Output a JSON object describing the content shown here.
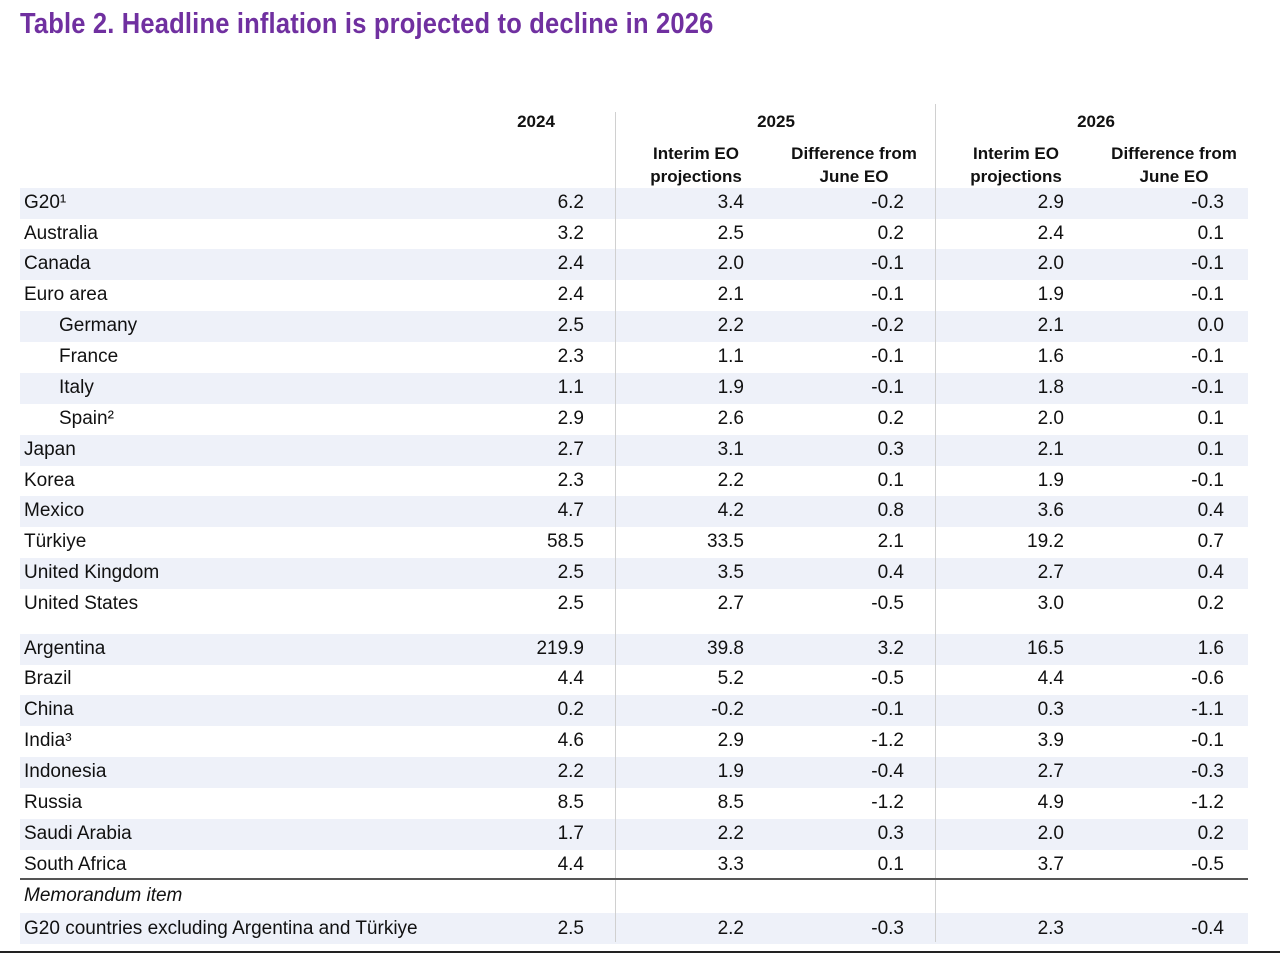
{
  "title": "Table 2. Headline inflation is projected to decline in 2026",
  "headers": {
    "year_2024": "2024",
    "year_2025": "2025",
    "year_2026": "2026",
    "interim_2025": "Interim EO\nprojections",
    "diff_2025": "Difference from\nJune EO",
    "interim_2026": "Interim EO\nprojections",
    "diff_2026": "Difference from\nJune EO"
  },
  "rows": [
    {
      "name": "G20¹",
      "indent": false,
      "v2024": "6.2",
      "i2025": "3.4",
      "d2025": "-0.2",
      "i2026": "2.9",
      "d2026": "-0.3"
    },
    {
      "name": "Australia",
      "indent": false,
      "v2024": "3.2",
      "i2025": "2.5",
      "d2025": "0.2",
      "i2026": "2.4",
      "d2026": "0.1"
    },
    {
      "name": "Canada",
      "indent": false,
      "v2024": "2.4",
      "i2025": "2.0",
      "d2025": "-0.1",
      "i2026": "2.0",
      "d2026": "-0.1"
    },
    {
      "name": "Euro area",
      "indent": false,
      "v2024": "2.4",
      "i2025": "2.1",
      "d2025": "-0.1",
      "i2026": "1.9",
      "d2026": "-0.1"
    },
    {
      "name": "Germany",
      "indent": true,
      "v2024": "2.5",
      "i2025": "2.2",
      "d2025": "-0.2",
      "i2026": "2.1",
      "d2026": "0.0"
    },
    {
      "name": "France",
      "indent": true,
      "v2024": "2.3",
      "i2025": "1.1",
      "d2025": "-0.1",
      "i2026": "1.6",
      "d2026": "-0.1"
    },
    {
      "name": "Italy",
      "indent": true,
      "v2024": "1.1",
      "i2025": "1.9",
      "d2025": "-0.1",
      "i2026": "1.8",
      "d2026": "-0.1"
    },
    {
      "name": "Spain²",
      "indent": true,
      "v2024": "2.9",
      "i2025": "2.6",
      "d2025": "0.2",
      "i2026": "2.0",
      "d2026": "0.1"
    },
    {
      "name": "Japan",
      "indent": false,
      "v2024": "2.7",
      "i2025": "3.1",
      "d2025": "0.3",
      "i2026": "2.1",
      "d2026": "0.1"
    },
    {
      "name": "Korea",
      "indent": false,
      "v2024": "2.3",
      "i2025": "2.2",
      "d2025": "0.1",
      "i2026": "1.9",
      "d2026": "-0.1"
    },
    {
      "name": "Mexico",
      "indent": false,
      "v2024": "4.7",
      "i2025": "4.2",
      "d2025": "0.8",
      "i2026": "3.6",
      "d2026": "0.4"
    },
    {
      "name": "Türkiye",
      "indent": false,
      "v2024": "58.5",
      "i2025": "33.5",
      "d2025": "2.1",
      "i2026": "19.2",
      "d2026": "0.7"
    },
    {
      "name": "United Kingdom",
      "indent": false,
      "v2024": "2.5",
      "i2025": "3.5",
      "d2025": "0.4",
      "i2026": "2.7",
      "d2026": "0.4"
    },
    {
      "name": "United States",
      "indent": false,
      "v2024": "2.5",
      "i2025": "2.7",
      "d2025": "-0.5",
      "i2026": "3.0",
      "d2026": "0.2"
    },
    {
      "name": "Argentina",
      "indent": false,
      "v2024": "219.9",
      "i2025": "39.8",
      "d2025": "3.2",
      "i2026": "16.5",
      "d2026": "1.6"
    },
    {
      "name": "Brazil",
      "indent": false,
      "v2024": "4.4",
      "i2025": "5.2",
      "d2025": "-0.5",
      "i2026": "4.4",
      "d2026": "-0.6"
    },
    {
      "name": "China",
      "indent": false,
      "v2024": "0.2",
      "i2025": "-0.2",
      "d2025": "-0.1",
      "i2026": "0.3",
      "d2026": "-1.1"
    },
    {
      "name": "India³",
      "indent": false,
      "v2024": "4.6",
      "i2025": "2.9",
      "d2025": "-1.2",
      "i2026": "3.9",
      "d2026": "-0.1"
    },
    {
      "name": "Indonesia",
      "indent": false,
      "v2024": "2.2",
      "i2025": "1.9",
      "d2025": "-0.4",
      "i2026": "2.7",
      "d2026": "-0.3"
    },
    {
      "name": "Russia",
      "indent": false,
      "v2024": "8.5",
      "i2025": "8.5",
      "d2025": "-1.2",
      "i2026": "4.9",
      "d2026": "-1.2"
    },
    {
      "name": "Saudi Arabia",
      "indent": false,
      "v2024": "1.7",
      "i2025": "2.2",
      "d2025": "0.3",
      "i2026": "2.0",
      "d2026": "0.2"
    },
    {
      "name": "South Africa",
      "indent": false,
      "v2024": "4.4",
      "i2025": "3.3",
      "d2025": "0.1",
      "i2026": "3.7",
      "d2026": "-0.5"
    }
  ],
  "memo_label": "Memorandum item",
  "memo_row": {
    "name": "G20 countries excluding Argentina and Türkiye",
    "v2024": "2.5",
    "i2025": "2.2",
    "d2025": "-0.3",
    "i2026": "2.3",
    "d2026": "-0.4"
  }
}
